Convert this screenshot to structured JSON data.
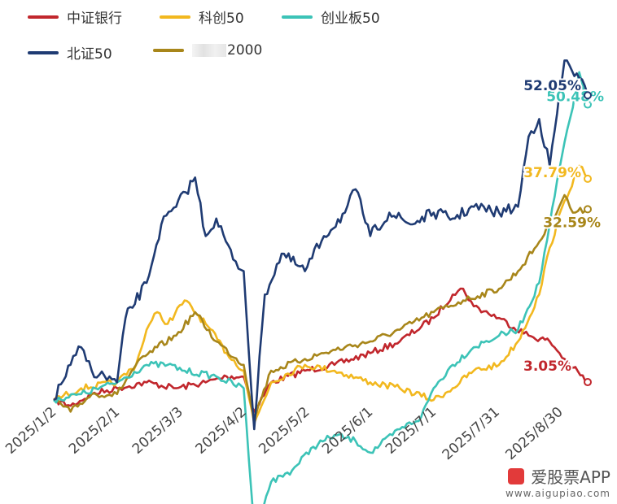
{
  "chart_data": {
    "type": "line",
    "x_ticks": [
      "2025/1/2",
      "2025/2/1",
      "2025/3/3",
      "2025/4/2",
      "2025/5/2",
      "2025/6/1",
      "2025/7/1",
      "2025/7/31",
      "2025/8/30"
    ],
    "x_range": [
      "2025/1/2",
      "2025/9/12"
    ],
    "y_range_percent": [
      -24,
      60
    ],
    "grid": false,
    "legend_position": "top-left",
    "series": [
      {
        "name": "中证银行",
        "color": "#c1272d",
        "end_label": "3.05%",
        "points": [
          [
            "2025/1/2",
            0
          ],
          [
            "2025/1/10",
            -1
          ],
          [
            "2025/1/20",
            1
          ],
          [
            "2025/2/1",
            2
          ],
          [
            "2025/2/15",
            3
          ],
          [
            "2025/3/1",
            2
          ],
          [
            "2025/3/15",
            3
          ],
          [
            "2025/3/25",
            4
          ],
          [
            "2025/4/2",
            4
          ],
          [
            "2025/4/7",
            -2
          ],
          [
            "2025/4/15",
            3
          ],
          [
            "2025/5/1",
            5
          ],
          [
            "2025/5/15",
            6
          ],
          [
            "2025/6/1",
            8
          ],
          [
            "2025/6/15",
            10
          ],
          [
            "2025/7/1",
            14
          ],
          [
            "2025/7/10",
            18
          ],
          [
            "2025/7/15",
            19
          ],
          [
            "2025/7/20",
            16
          ],
          [
            "2025/8/1",
            14
          ],
          [
            "2025/8/15",
            11
          ],
          [
            "2025/8/25",
            10
          ],
          [
            "2025/9/1",
            7
          ],
          [
            "2025/9/5",
            5.5
          ],
          [
            "2025/9/12",
            3.05
          ]
        ]
      },
      {
        "name": "科创50",
        "color": "#f2b81f",
        "end_label": "37.79%",
        "points": [
          [
            "2025/1/2",
            0
          ],
          [
            "2025/1/15",
            2
          ],
          [
            "2025/2/1",
            3
          ],
          [
            "2025/2/10",
            6
          ],
          [
            "2025/2/15",
            12
          ],
          [
            "2025/2/20",
            15
          ],
          [
            "2025/2/25",
            13
          ],
          [
            "2025/3/5",
            17
          ],
          [
            "2025/3/15",
            13
          ],
          [
            "2025/3/25",
            8
          ],
          [
            "2025/4/2",
            5
          ],
          [
            "2025/4/7",
            -4
          ],
          [
            "2025/4/15",
            3
          ],
          [
            "2025/5/1",
            6
          ],
          [
            "2025/5/15",
            5
          ],
          [
            "2025/6/1",
            3
          ],
          [
            "2025/6/15",
            2
          ],
          [
            "2025/7/1",
            0
          ],
          [
            "2025/7/10",
            2
          ],
          [
            "2025/7/20",
            5
          ],
          [
            "2025/8/1",
            6
          ],
          [
            "2025/8/10",
            10
          ],
          [
            "2025/8/20",
            18
          ],
          [
            "2025/8/25",
            26
          ],
          [
            "2025/9/1",
            34
          ],
          [
            "2025/9/8",
            40
          ],
          [
            "2025/9/12",
            37.79
          ]
        ]
      },
      {
        "name": "创业板50",
        "color": "#3cc3b7",
        "end_label": "50.48%",
        "points": [
          [
            "2025/1/2",
            0
          ],
          [
            "2025/1/15",
            1
          ],
          [
            "2025/2/1",
            3
          ],
          [
            "2025/2/15",
            6
          ],
          [
            "2025/2/25",
            6
          ],
          [
            "2025/3/5",
            5
          ],
          [
            "2025/3/20",
            4
          ],
          [
            "2025/4/2",
            2
          ],
          [
            "2025/4/7",
            -22
          ],
          [
            "2025/4/15",
            -14
          ],
          [
            "2025/4/25",
            -12
          ],
          [
            "2025/5/5",
            -8
          ],
          [
            "2025/5/15",
            -6
          ],
          [
            "2025/5/25",
            -7
          ],
          [
            "2025/6/1",
            -9
          ],
          [
            "2025/6/15",
            -5
          ],
          [
            "2025/6/25",
            -3
          ],
          [
            "2025/7/1",
            2
          ],
          [
            "2025/7/10",
            6
          ],
          [
            "2025/7/20",
            9
          ],
          [
            "2025/8/1",
            11
          ],
          [
            "2025/8/10",
            12
          ],
          [
            "2025/8/20",
            20
          ],
          [
            "2025/8/25",
            30
          ],
          [
            "2025/9/1",
            44
          ],
          [
            "2025/9/5",
            50
          ],
          [
            "2025/9/8",
            56
          ],
          [
            "2025/9/12",
            50.48
          ]
        ]
      },
      {
        "name": "北证50",
        "color": "#1f3b73",
        "end_label": "52.05%",
        "points": [
          [
            "2025/1/2",
            0
          ],
          [
            "2025/1/10",
            6
          ],
          [
            "2025/1/15",
            9
          ],
          [
            "2025/1/20",
            5
          ],
          [
            "2025/2/1",
            3
          ],
          [
            "2025/2/5",
            14
          ],
          [
            "2025/2/15",
            20
          ],
          [
            "2025/2/22",
            30
          ],
          [
            "2025/3/1",
            33
          ],
          [
            "2025/3/10",
            38
          ],
          [
            "2025/3/15",
            28
          ],
          [
            "2025/3/20",
            31
          ],
          [
            "2025/3/28",
            24
          ],
          [
            "2025/4/2",
            22
          ],
          [
            "2025/4/7",
            -5
          ],
          [
            "2025/4/12",
            18
          ],
          [
            "2025/4/20",
            25
          ],
          [
            "2025/5/1",
            22
          ],
          [
            "2025/5/10",
            28
          ],
          [
            "2025/5/20",
            32
          ],
          [
            "2025/5/25",
            36
          ],
          [
            "2025/6/1",
            28
          ],
          [
            "2025/6/10",
            32
          ],
          [
            "2025/6/20",
            30
          ],
          [
            "2025/7/1",
            32
          ],
          [
            "2025/7/10",
            31
          ],
          [
            "2025/7/20",
            33
          ],
          [
            "2025/8/1",
            32
          ],
          [
            "2025/8/10",
            33
          ],
          [
            "2025/8/15",
            45
          ],
          [
            "2025/8/20",
            48
          ],
          [
            "2025/8/25",
            40
          ],
          [
            "2025/9/1",
            58
          ],
          [
            "2025/9/8",
            55
          ],
          [
            "2025/9/12",
            52.05
          ]
        ]
      },
      {
        "name": "2000",
        "color": "#a8861a",
        "end_label": "32.59%",
        "points": [
          [
            "2025/1/2",
            0
          ],
          [
            "2025/1/10",
            -2
          ],
          [
            "2025/1/20",
            1
          ],
          [
            "2025/2/1",
            1
          ],
          [
            "2025/2/10",
            6
          ],
          [
            "2025/2/20",
            9
          ],
          [
            "2025/3/1",
            11
          ],
          [
            "2025/3/10",
            15
          ],
          [
            "2025/3/20",
            10
          ],
          [
            "2025/4/2",
            6
          ],
          [
            "2025/4/7",
            -3
          ],
          [
            "2025/4/15",
            5
          ],
          [
            "2025/5/1",
            7
          ],
          [
            "2025/5/10",
            8
          ],
          [
            "2025/5/20",
            9
          ],
          [
            "2025/6/1",
            10
          ],
          [
            "2025/6/15",
            12
          ],
          [
            "2025/7/1",
            15
          ],
          [
            "2025/7/15",
            17
          ],
          [
            "2025/8/1",
            19
          ],
          [
            "2025/8/10",
            22
          ],
          [
            "2025/8/20",
            27
          ],
          [
            "2025/8/25",
            30
          ],
          [
            "2025/9/1",
            35
          ],
          [
            "2025/9/5",
            32
          ],
          [
            "2025/9/12",
            32.59
          ]
        ]
      }
    ]
  },
  "watermark": {
    "name": "爱股票APP",
    "url": "www.aigupiao.com"
  }
}
